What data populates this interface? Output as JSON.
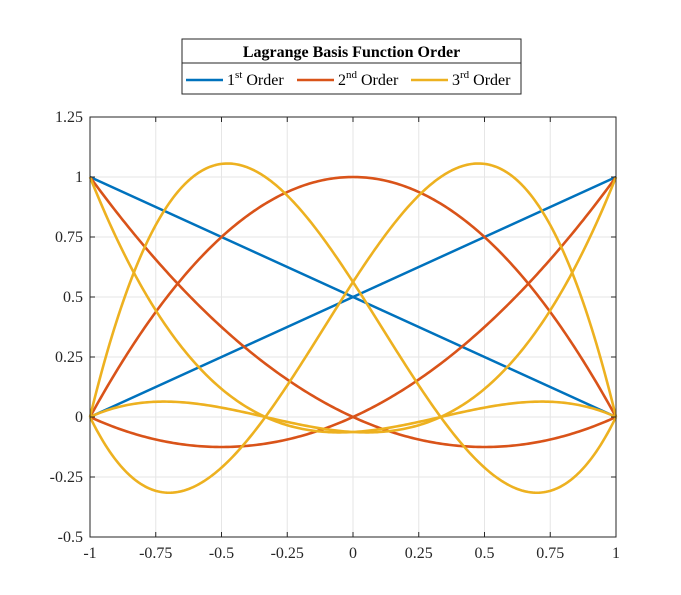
{
  "chart_data": {
    "type": "line",
    "title": "",
    "xlabel": "",
    "ylabel": "",
    "xlim": [
      -1,
      1
    ],
    "ylim": [
      -0.5,
      1.25
    ],
    "grid": true,
    "legend_placement": "top-center, outside",
    "x_ticks": [
      -1,
      -0.75,
      -0.5,
      -0.25,
      0,
      0.25,
      0.5,
      0.75,
      1
    ],
    "x_tick_labels": [
      "-1",
      "-0.75",
      "-0.5",
      "-0.25",
      "0",
      "0.25",
      "0.5",
      "0.75",
      "1"
    ],
    "y_ticks": [
      -0.5,
      -0.25,
      0,
      0.25,
      0.5,
      0.75,
      1,
      1.25
    ],
    "y_tick_labels": [
      "-0.5",
      "-0.25",
      "0",
      "0.25",
      "0.5",
      "0.75",
      "1",
      "1.25"
    ],
    "legend": {
      "title": "Lagrange Basis Function Order",
      "entries": [
        {
          "base": "1",
          "sup": "st",
          "suffix": " Order",
          "color": "#0072BD"
        },
        {
          "base": "2",
          "sup": "nd",
          "suffix": " Order",
          "color": "#D95319"
        },
        {
          "base": "3",
          "sup": "rd",
          "suffix": " Order",
          "color": "#EDB120"
        }
      ]
    },
    "series": [
      {
        "name": "1st Order",
        "color": "#0072BD",
        "order": 1,
        "nodes": [
          -1,
          1
        ],
        "x": [
          -1,
          0,
          1
        ],
        "curves": [
          [
            1,
            0.5,
            0
          ],
          [
            0,
            0.5,
            1
          ]
        ]
      },
      {
        "name": "2nd Order",
        "color": "#D95319",
        "order": 2,
        "nodes": [
          -1,
          0,
          1
        ],
        "x": [
          -1,
          -0.5,
          0,
          0.5,
          1
        ],
        "curves": [
          [
            1,
            0.375,
            0,
            -0.125,
            0
          ],
          [
            0,
            0.75,
            1,
            0.75,
            0
          ],
          [
            0,
            -0.125,
            0,
            0.375,
            1
          ]
        ]
      },
      {
        "name": "3rd Order",
        "color": "#EDB120",
        "order": 3,
        "nodes": [
          -1,
          -0.3333,
          0.3333,
          1
        ],
        "x": [
          -1,
          -0.5,
          0,
          0.5,
          1
        ],
        "curves": [
          [
            1,
            0.2344,
            -0.0625,
            0.0391,
            0
          ],
          [
            0,
            1.0547,
            0.5625,
            -0.2109,
            0
          ],
          [
            0,
            -0.2109,
            0.5625,
            1.0547,
            0
          ],
          [
            0,
            0.0391,
            -0.0625,
            0.2344,
            1
          ]
        ]
      }
    ]
  }
}
